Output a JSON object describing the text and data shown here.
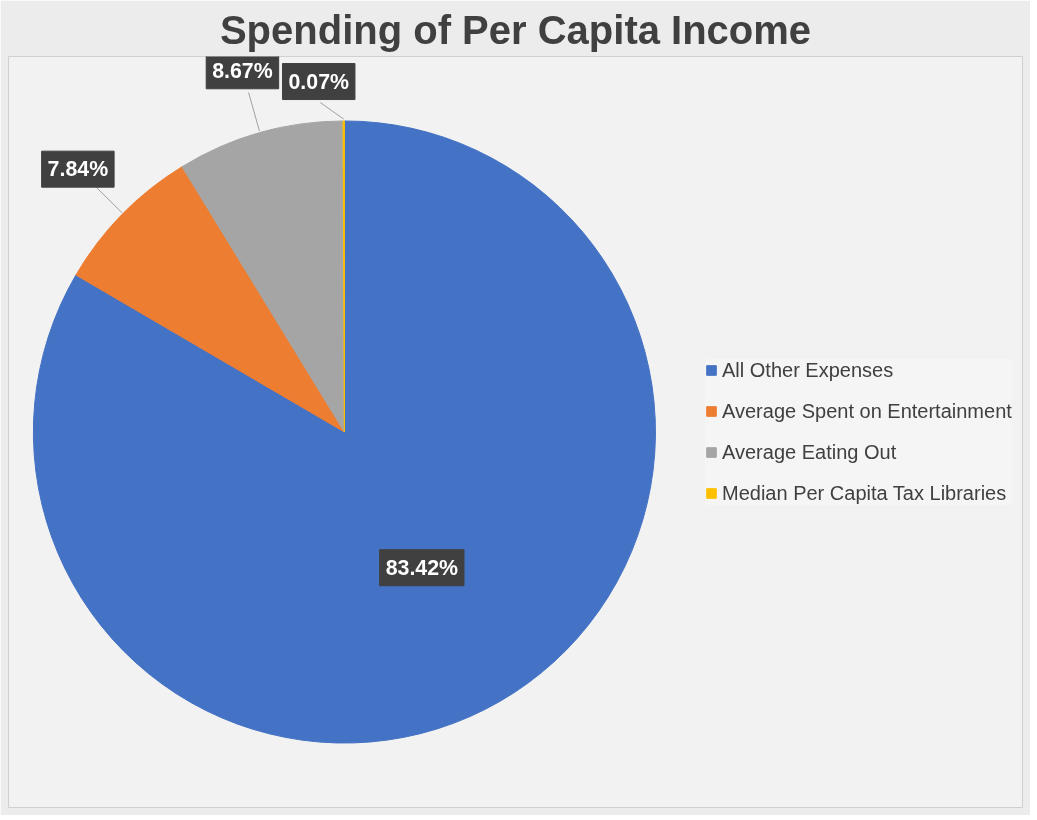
{
  "chart_data": {
    "type": "pie",
    "title": "Spending of Per Capita Income",
    "categories": [
      "All Other Expenses",
      "Average Spent on Entertainment",
      "Average Eating Out",
      "Median Per Capita Tax Libraries"
    ],
    "values": [
      83.42,
      7.84,
      8.67,
      0.07
    ],
    "colors": [
      "#4472c4",
      "#ed7d31",
      "#a5a5a5",
      "#ffc000"
    ],
    "value_labels": [
      "83.42%",
      "7.84%",
      "8.67%",
      "0.07%"
    ],
    "legend": "right"
  }
}
